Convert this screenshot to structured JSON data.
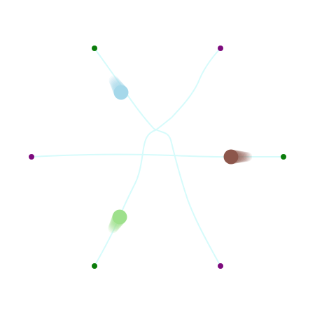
{
  "colors": {
    "background": "#ffffff",
    "path": "#d6fbfb",
    "endpoint_green": "#0b7d0b",
    "endpoint_purple": "#7d0b7d"
  },
  "endpoints": [
    {
      "id": "top-left",
      "color": "green"
    },
    {
      "id": "top-right",
      "color": "purple"
    },
    {
      "id": "left",
      "color": "purple"
    },
    {
      "id": "right",
      "color": "green"
    },
    {
      "id": "bottom-left",
      "color": "green"
    },
    {
      "id": "bottom-right",
      "color": "purple"
    }
  ],
  "agents": [
    {
      "id": "agent-blue",
      "color": "#a5d8ea",
      "trail": "upper-left-path"
    },
    {
      "id": "agent-brown",
      "color": "#8c564b",
      "trail": "right-path"
    },
    {
      "id": "agent-green",
      "color": "#9ee08c",
      "trail": "lower-left-path"
    }
  ]
}
